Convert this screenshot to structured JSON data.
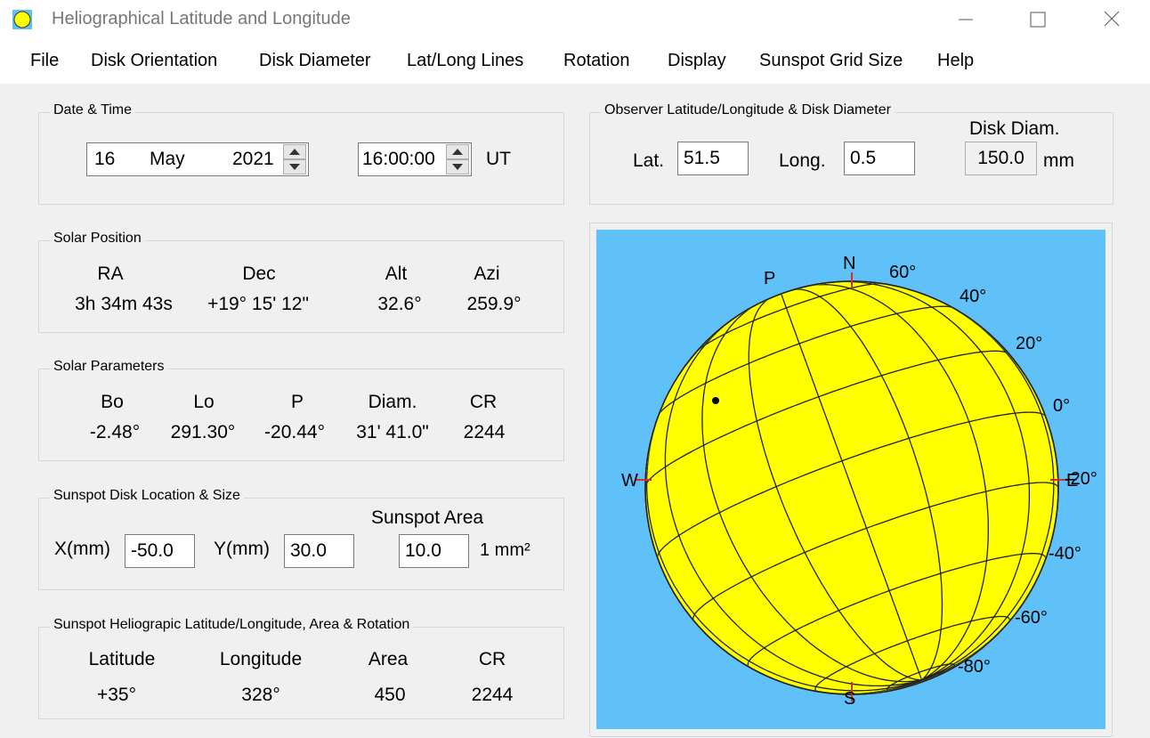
{
  "window": {
    "title": "Heliographical Latitude and Longitude"
  },
  "menu": [
    "File",
    "Disk Orientation",
    "Disk Diameter",
    "Lat/Long Lines",
    "Rotation",
    "Display",
    "Sunspot Grid Size",
    "Help"
  ],
  "date_time": {
    "title": "Date & Time",
    "day": "16",
    "month": "May",
    "year": "2021",
    "time": "16:00:00",
    "ut_label": "UT"
  },
  "observer": {
    "title": "Observer Latitude/Longitude & Disk Diameter",
    "lat_label": "Lat.",
    "lat_value": "51.5",
    "long_label": "Long.",
    "long_value": "0.5",
    "diam_label": "Disk Diam.",
    "diam_value": "150.0",
    "diam_unit": "mm"
  },
  "solar_position": {
    "title": "Solar Position",
    "headers": [
      "RA",
      "Dec",
      "Alt",
      "Azi"
    ],
    "values": [
      "3h 34m 43s",
      "+19° 15' 12\"",
      "32.6°",
      "259.9°"
    ]
  },
  "solar_parameters": {
    "title": "Solar Parameters",
    "headers": [
      "Bo",
      "Lo",
      "P",
      "Diam.",
      "CR"
    ],
    "values": [
      "-2.48°",
      "291.30°",
      "-20.44°",
      "31' 41.0\"",
      "2244"
    ]
  },
  "sunspot_disk": {
    "title": "Sunspot Disk Location & Size",
    "x_label": "X(mm)",
    "x_value": "-50.0",
    "y_label": "Y(mm)",
    "y_value": "30.0",
    "area_label": "Sunspot Area",
    "area_value": "10.0",
    "area_unit": "1 mm²"
  },
  "sunspot_helio": {
    "title": "Sunspot Heliograpic Latitude/Longitude, Area & Rotation",
    "headers": [
      "Latitude",
      "Longitude",
      "Area",
      "CR"
    ],
    "values": [
      "+35°",
      "328°",
      "450",
      "2244"
    ]
  },
  "disk_labels": {
    "n": "N",
    "s": "S",
    "w": "W",
    "e": "E",
    "p": "P",
    "lat_60n": "60°",
    "lat_40n": "40°",
    "lat_20n": "20°",
    "lat_0": "0°",
    "lat_20s": "-20°",
    "lat_40s": "-40°",
    "lat_60s": "-60°",
    "lat_80s": "-80°"
  },
  "colors": {
    "sun": "#ffff00",
    "sky": "#60c0f8",
    "grid": "#222222",
    "axis_tick": "#d03030"
  }
}
